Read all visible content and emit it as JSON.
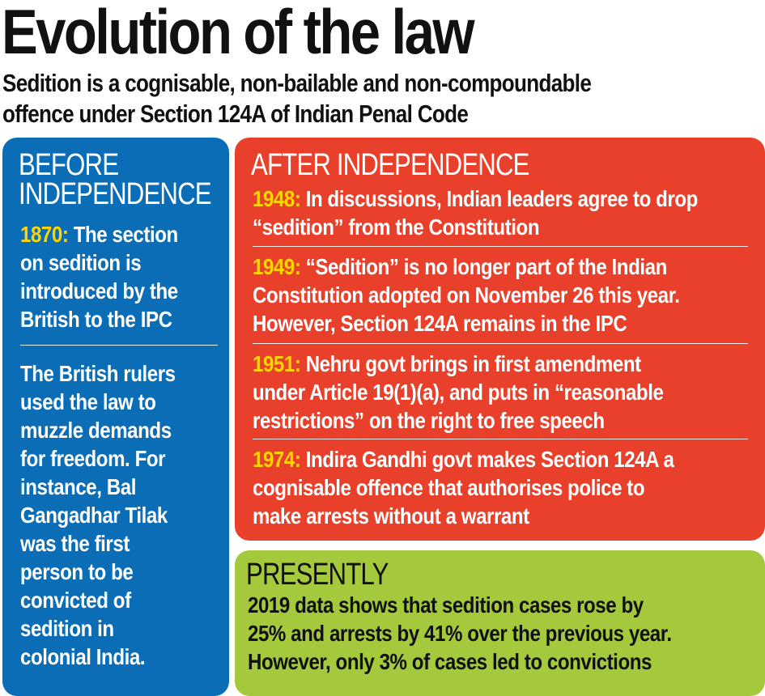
{
  "title": "Evolution of the law",
  "subtitle": [
    "Sedition is a cognisable, non-bailable and non-compoundable",
    "offence under Section 124A of Indian Penal Code"
  ],
  "colors": {
    "before": "#0a6db6",
    "after": "#e8402b",
    "presently": "#a5c93c",
    "year": "#ffd400"
  },
  "before": {
    "heading": [
      "BEFORE",
      "INDEPENDENCE"
    ],
    "year": "1870:",
    "event": [
      " The section",
      "on sedition is",
      "introduced by the",
      "British to the IPC"
    ],
    "note": [
      "The British rulers",
      "used the law to",
      "muzzle demands",
      "for freedom. For",
      "instance, Bal",
      "Gangadhar Tilak",
      "was the first",
      "person to be",
      "convicted of",
      "sedition in",
      "colonial India."
    ]
  },
  "after": {
    "heading": "AFTER INDEPENDENCE",
    "items": [
      {
        "year": "1948:",
        "lines": [
          " In discussions, Indian leaders agree to drop",
          "“sedition” from the Constitution"
        ]
      },
      {
        "year": "1949:",
        "lines": [
          " “Sedition” is no longer part of the Indian",
          "Constitution adopted on November 26 this year.",
          "However, Section 124A remains in the IPC"
        ]
      },
      {
        "year": "1951:",
        "lines": [
          " Nehru govt brings in first amendment",
          "under Article 19(1)(a), and puts in “reasonable",
          "restrictions” on the right to free speech"
        ]
      },
      {
        "year": "1974:",
        "lines": [
          " Indira Gandhi govt makes Section 124A a",
          "cognisable offence that authorises police to",
          "make arrests without a warrant"
        ]
      }
    ]
  },
  "presently": {
    "heading": "PRESENTLY",
    "lines": [
      "2019 data shows that sedition cases rose by",
      "25% and arrests by 41% over the previous year.",
      "However, only 3% of cases led to convictions"
    ]
  }
}
